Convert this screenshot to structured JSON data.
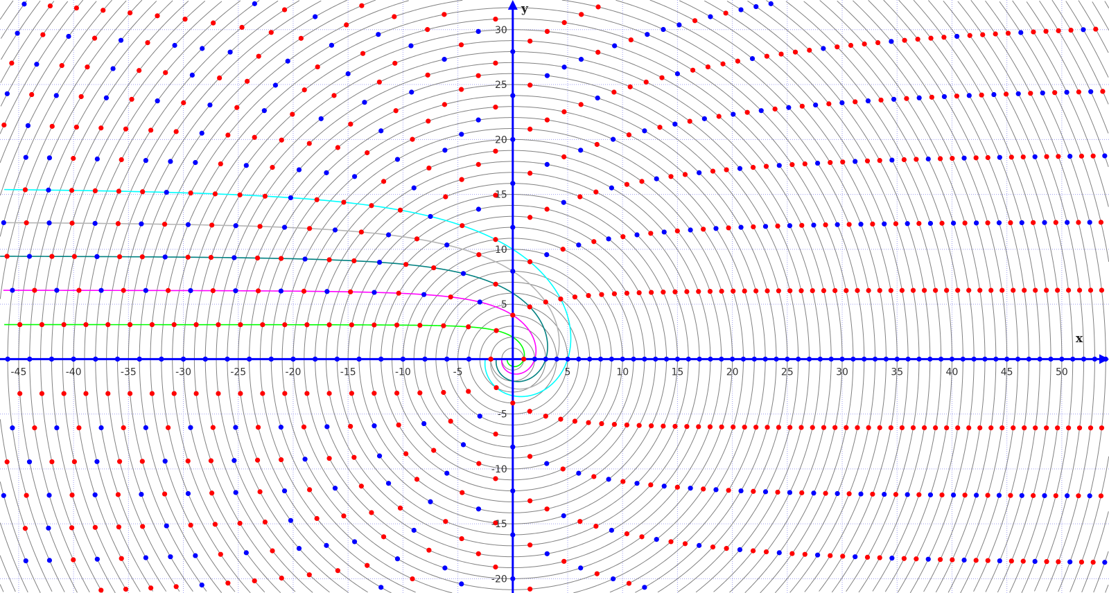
{
  "chart_data": {
    "type": "scatter",
    "title": "",
    "xlabel": "x",
    "ylabel": "y",
    "xlim": [
      -46.7,
      54.3
    ],
    "ylim": [
      -21.3,
      32.7
    ],
    "grid": true,
    "grid_step": 5,
    "grid_color": "#9c9cf0",
    "axis_color": "#0000ff",
    "x_ticks": [
      "-45",
      "-40",
      "-35",
      "-30",
      "-25",
      "-20",
      "-15",
      "-10",
      "-5",
      "5",
      "10",
      "15",
      "20",
      "25",
      "30",
      "35",
      "40",
      "45",
      "50"
    ],
    "y_ticks": [
      "-20",
      "-15",
      "-10",
      "-5",
      "5",
      "10",
      "15",
      "20",
      "25",
      "30"
    ],
    "circles": {
      "r_min": 1,
      "r_max": 70,
      "r_step": 1,
      "color": "#808080"
    },
    "dots": {
      "r_min": 1,
      "r_max": 70,
      "angle_unit_rad": 6.283185,
      "coprime_color": "#ff0000",
      "non_coprime_color": "#0000ff"
    },
    "curves": [
      {
        "k": 1,
        "asymptote_y": 3.1416,
        "color": "#00ff00"
      },
      {
        "k": 2,
        "asymptote_y": 6.2832,
        "color": "#ff00ff"
      },
      {
        "k": 3,
        "asymptote_y": 9.4248,
        "color": "#008080"
      },
      {
        "k": 4,
        "asymptote_y": 12.5664,
        "color": "#b4b4b4"
      },
      {
        "k": 5,
        "asymptote_y": 15.708,
        "color": "#00ffff"
      }
    ]
  }
}
